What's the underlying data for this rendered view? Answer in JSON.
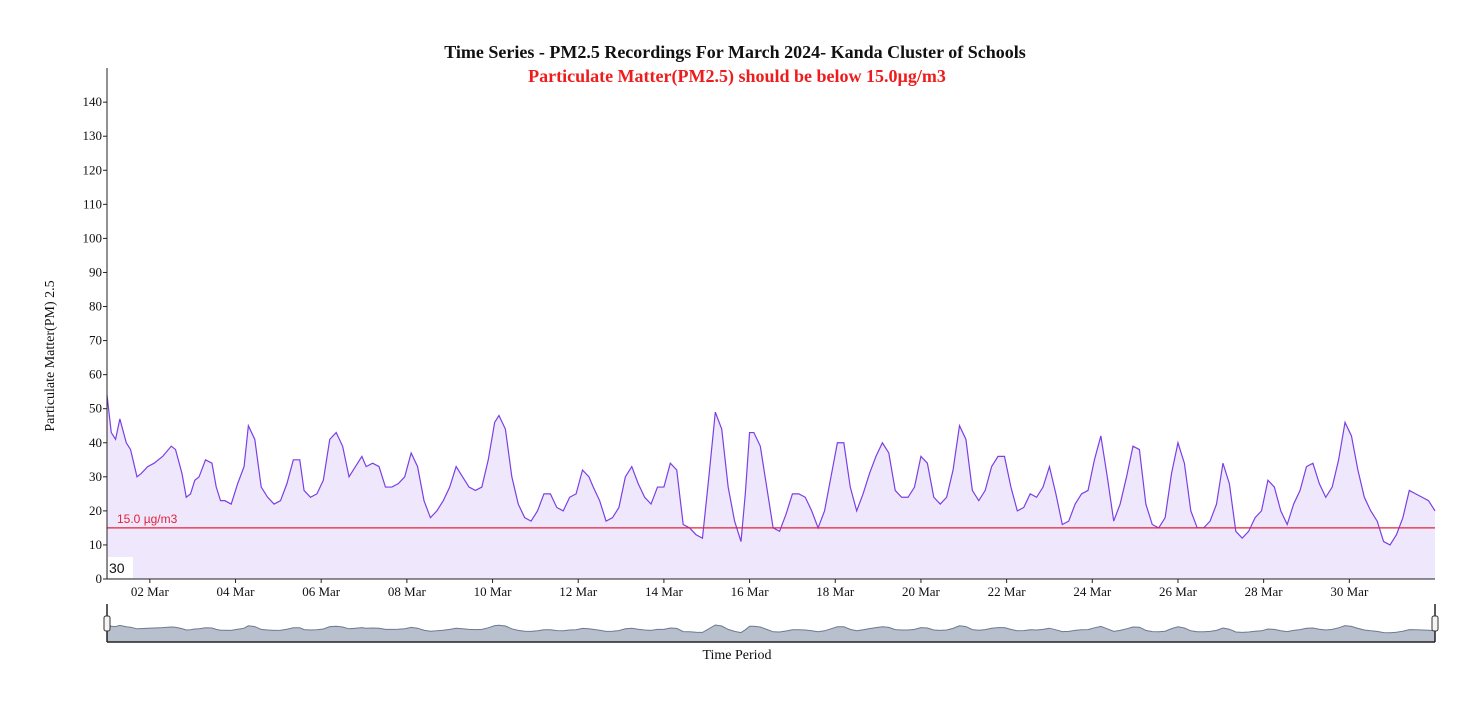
{
  "colors": {
    "line": "#7b3fe4",
    "area": "#efe8fc",
    "threshold": "#e0243c",
    "subtitle": "#ee1c1c",
    "brush_line": "#6b7a90",
    "brush_fill": "#b8c0ce"
  },
  "chart_data": {
    "type": "area",
    "title": "Time Series - PM2.5 Recordings For March 2024- Kanda Cluster of Schools",
    "subtitle": "Particulate Matter(PM2.5) should be below 15.0µg/m3",
    "xlabel": "Time Period",
    "ylabel": "Particulate Matter(PM) 2.5",
    "ylim": [
      0,
      150
    ],
    "yticks": [
      0,
      10,
      20,
      30,
      40,
      50,
      60,
      70,
      80,
      90,
      100,
      110,
      120,
      130,
      140
    ],
    "xlim": [
      0.0,
      31.0
    ],
    "xticks": [
      {
        "x": 1,
        "label": "02 Mar"
      },
      {
        "x": 3,
        "label": "04 Mar"
      },
      {
        "x": 5,
        "label": "06 Mar"
      },
      {
        "x": 7,
        "label": "08 Mar"
      },
      {
        "x": 9,
        "label": "10 Mar"
      },
      {
        "x": 11,
        "label": "12 Mar"
      },
      {
        "x": 13,
        "label": "14 Mar"
      },
      {
        "x": 15,
        "label": "16 Mar"
      },
      {
        "x": 17,
        "label": "18 Mar"
      },
      {
        "x": 19,
        "label": "20 Mar"
      },
      {
        "x": 21,
        "label": "22 Mar"
      },
      {
        "x": 23,
        "label": "24 Mar"
      },
      {
        "x": 25,
        "label": "26 Mar"
      },
      {
        "x": 27,
        "label": "28 Mar"
      },
      {
        "x": 29,
        "label": "30 Mar"
      }
    ],
    "threshold": {
      "value": 15.0,
      "label": "15.0 µg/m3"
    },
    "corner_label": "30",
    "grid": false,
    "brush": true,
    "x": [
      0.0,
      0.1,
      0.2,
      0.3,
      0.45,
      0.55,
      0.7,
      0.8,
      0.95,
      1.1,
      1.3,
      1.5,
      1.6,
      1.75,
      1.85,
      1.95,
      2.05,
      2.15,
      2.3,
      2.45,
      2.55,
      2.65,
      2.75,
      2.9,
      3.05,
      3.2,
      3.3,
      3.45,
      3.6,
      3.75,
      3.9,
      4.05,
      4.2,
      4.35,
      4.5,
      4.6,
      4.75,
      4.9,
      5.05,
      5.2,
      5.35,
      5.5,
      5.65,
      5.8,
      5.95,
      6.05,
      6.2,
      6.35,
      6.5,
      6.65,
      6.8,
      6.95,
      7.1,
      7.25,
      7.4,
      7.55,
      7.7,
      7.85,
      8.0,
      8.15,
      8.3,
      8.45,
      8.6,
      8.75,
      8.9,
      9.05,
      9.15,
      9.3,
      9.45,
      9.6,
      9.75,
      9.9,
      10.05,
      10.2,
      10.35,
      10.5,
      10.65,
      10.8,
      10.95,
      11.1,
      11.25,
      11.35,
      11.5,
      11.65,
      11.8,
      11.95,
      12.1,
      12.25,
      12.4,
      12.55,
      12.7,
      12.85,
      13.0,
      13.15,
      13.3,
      13.45,
      13.6,
      13.75,
      13.9,
      14.05,
      14.2,
      14.35,
      14.5,
      14.65,
      14.8,
      14.9,
      15.0,
      15.1,
      15.25,
      15.4,
      15.55,
      15.7,
      15.85,
      16.0,
      16.15,
      16.3,
      16.45,
      16.6,
      16.75,
      16.9,
      17.05,
      17.2,
      17.35,
      17.5,
      17.65,
      17.8,
      17.95,
      18.1,
      18.25,
      18.4,
      18.55,
      18.7,
      18.85,
      19.0,
      19.15,
      19.3,
      19.45,
      19.6,
      19.75,
      19.9,
      20.05,
      20.2,
      20.35,
      20.5,
      20.65,
      20.8,
      20.95,
      21.1,
      21.25,
      21.4,
      21.55,
      21.7,
      21.85,
      22.0,
      22.15,
      22.3,
      22.45,
      22.6,
      22.75,
      22.9,
      23.05,
      23.2,
      23.35,
      23.5,
      23.65,
      23.8,
      23.95,
      24.1,
      24.25,
      24.4,
      24.55,
      24.7,
      24.85,
      25.0,
      25.15,
      25.3,
      25.45,
      25.6,
      25.75,
      25.9,
      26.05,
      26.2,
      26.35,
      26.5,
      26.65,
      26.8,
      26.95,
      27.1,
      27.25,
      27.4,
      27.55,
      27.7,
      27.85,
      28.0,
      28.15,
      28.3,
      28.45,
      28.6,
      28.75,
      28.9,
      29.05,
      29.2,
      29.35,
      29.5,
      29.65,
      29.8,
      29.95,
      30.1,
      30.25,
      30.4,
      30.55,
      30.7,
      30.85,
      31.0
    ],
    "values": [
      54,
      43,
      41,
      47,
      40,
      38,
      30,
      31,
      33,
      34,
      36,
      39,
      38,
      31,
      24,
      25,
      29,
      30,
      35,
      34,
      27,
      23,
      23,
      22,
      28,
      33,
      45,
      41,
      27,
      24,
      22,
      23,
      28,
      35,
      35,
      26,
      24,
      25,
      29,
      41,
      43,
      39,
      30,
      33,
      36,
      33,
      34,
      33,
      27,
      27,
      28,
      30,
      37,
      33,
      23,
      18,
      20,
      23,
      27,
      33,
      30,
      27,
      26,
      27,
      35,
      46,
      48,
      44,
      30,
      22,
      18,
      17,
      20,
      25,
      25,
      21,
      20,
      24,
      25,
      32,
      30,
      27,
      23,
      17,
      18,
      21,
      30,
      33,
      28,
      24,
      22,
      27,
      27,
      34,
      32,
      16,
      15,
      13,
      12,
      30,
      49,
      44,
      27,
      17,
      11,
      25,
      43,
      43,
      39,
      27,
      15,
      14,
      19,
      25,
      25,
      24,
      20,
      15,
      20,
      30,
      40,
      40,
      27,
      20,
      25,
      31,
      36,
      40,
      37,
      26,
      24,
      24,
      27,
      36,
      34,
      24,
      22,
      24,
      32,
      45,
      41,
      26,
      23,
      26,
      33,
      36,
      36,
      27,
      20,
      21,
      25,
      24,
      27,
      33,
      25,
      16,
      17,
      22,
      25,
      26,
      35,
      42,
      30,
      17,
      22,
      30,
      39,
      38,
      22,
      16,
      15,
      18,
      31,
      40,
      34,
      20,
      15,
      15,
      17,
      22,
      34,
      28,
      14,
      12,
      14,
      18,
      20,
      29,
      27,
      20,
      16,
      22,
      26,
      33,
      34,
      28,
      24,
      27,
      35,
      46,
      42,
      32,
      24,
      20,
      17,
      11,
      10,
      13,
      18,
      26,
      25,
      24,
      23,
      20
    ]
  }
}
